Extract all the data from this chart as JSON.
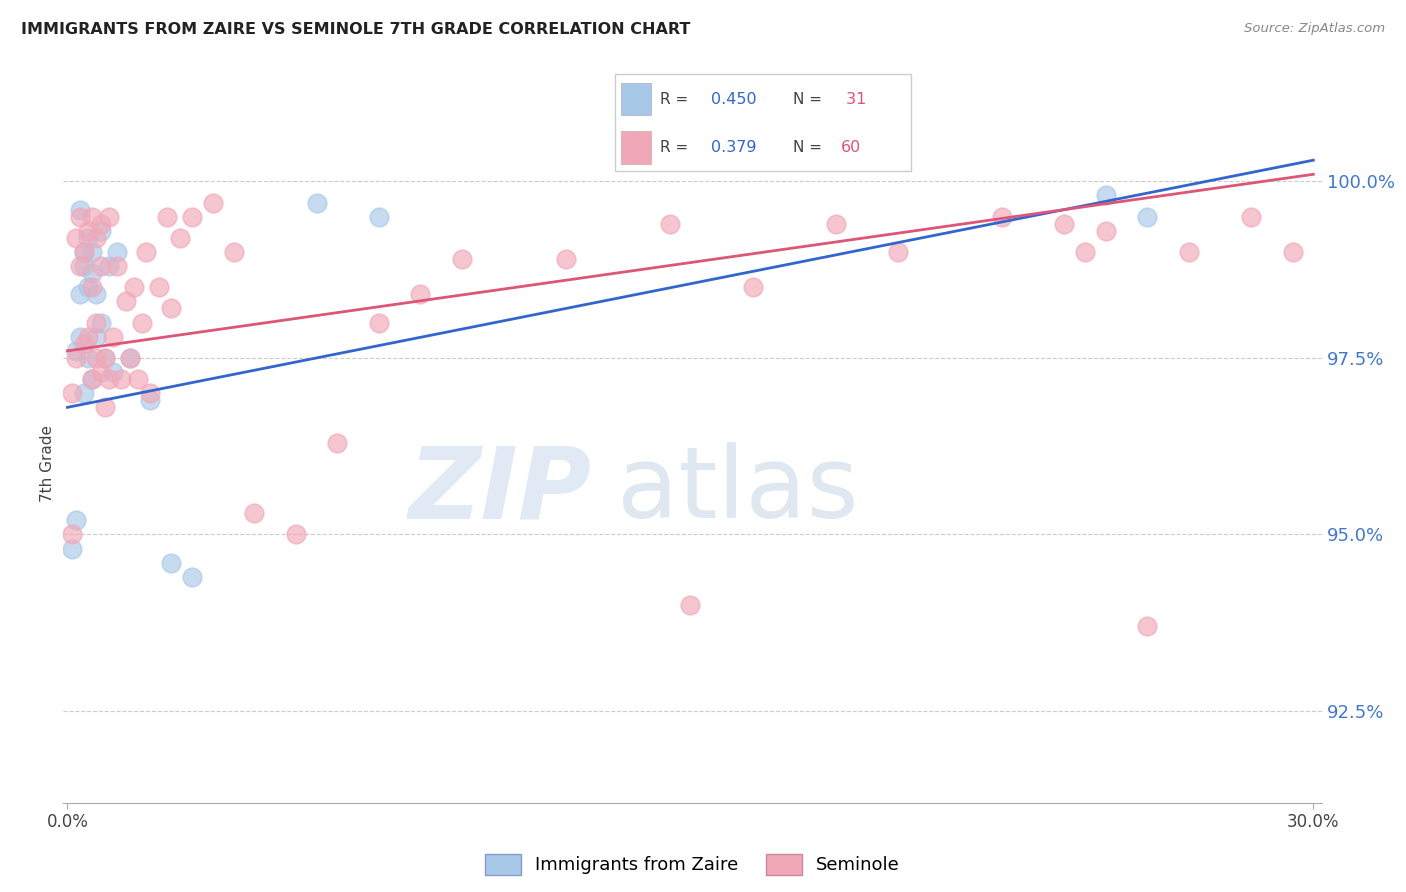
{
  "title": "IMMIGRANTS FROM ZAIRE VS SEMINOLE 7TH GRADE CORRELATION CHART",
  "source": "Source: ZipAtlas.com",
  "ylabel": "7th Grade",
  "ymin": 91.2,
  "ymax": 100.8,
  "xmin": -0.001,
  "xmax": 0.302,
  "legend_blue_label": "Immigrants from Zaire",
  "legend_pink_label": "Seminole",
  "blue_color": "#a8c8e8",
  "pink_color": "#f0a8b8",
  "blue_line_color": "#3366cc",
  "pink_line_color": "#dd5577",
  "blue_points_x": [
    0.001,
    0.002,
    0.002,
    0.003,
    0.003,
    0.003,
    0.004,
    0.004,
    0.004,
    0.005,
    0.005,
    0.005,
    0.006,
    0.006,
    0.006,
    0.007,
    0.007,
    0.008,
    0.008,
    0.009,
    0.01,
    0.011,
    0.012,
    0.015,
    0.02,
    0.025,
    0.03,
    0.06,
    0.075,
    0.25,
    0.26
  ],
  "blue_points_y": [
    94.8,
    97.6,
    95.2,
    98.4,
    97.8,
    99.6,
    98.8,
    97.0,
    99.0,
    97.5,
    98.5,
    99.2,
    97.2,
    98.7,
    99.0,
    98.4,
    97.8,
    98.0,
    99.3,
    97.5,
    98.8,
    97.3,
    99.0,
    97.5,
    96.9,
    94.6,
    94.4,
    99.7,
    99.5,
    99.8,
    99.5
  ],
  "pink_points_x": [
    0.001,
    0.001,
    0.002,
    0.002,
    0.003,
    0.003,
    0.004,
    0.004,
    0.005,
    0.005,
    0.006,
    0.006,
    0.006,
    0.007,
    0.007,
    0.007,
    0.008,
    0.008,
    0.008,
    0.009,
    0.009,
    0.01,
    0.01,
    0.011,
    0.012,
    0.013,
    0.014,
    0.015,
    0.016,
    0.017,
    0.018,
    0.019,
    0.02,
    0.022,
    0.024,
    0.025,
    0.027,
    0.03,
    0.035,
    0.04,
    0.045,
    0.055,
    0.065,
    0.075,
    0.085,
    0.095,
    0.12,
    0.145,
    0.165,
    0.185,
    0.2,
    0.225,
    0.245,
    0.15,
    0.26,
    0.27,
    0.285,
    0.295,
    0.25,
    0.24
  ],
  "pink_points_y": [
    95.0,
    97.0,
    97.5,
    99.2,
    98.8,
    99.5,
    99.0,
    97.7,
    99.3,
    97.8,
    99.5,
    97.2,
    98.5,
    99.2,
    97.5,
    98.0,
    98.8,
    97.3,
    99.4,
    96.8,
    97.5,
    97.2,
    99.5,
    97.8,
    98.8,
    97.2,
    98.3,
    97.5,
    98.5,
    97.2,
    98.0,
    99.0,
    97.0,
    98.5,
    99.5,
    98.2,
    99.2,
    99.5,
    99.7,
    99.0,
    95.3,
    95.0,
    96.3,
    98.0,
    98.4,
    98.9,
    98.9,
    99.4,
    98.5,
    99.4,
    99.0,
    99.5,
    99.0,
    94.0,
    93.7,
    99.0,
    99.5,
    99.0,
    99.3,
    99.4
  ],
  "blue_trend": [
    0.0,
    0.3,
    96.8,
    100.3
  ],
  "pink_trend": [
    0.0,
    0.3,
    97.6,
    100.1
  ],
  "yticks": [
    92.5,
    95.0,
    97.5,
    100.0
  ],
  "watermark_zip": "ZIP",
  "watermark_atlas": "atlas",
  "background_color": "#ffffff"
}
